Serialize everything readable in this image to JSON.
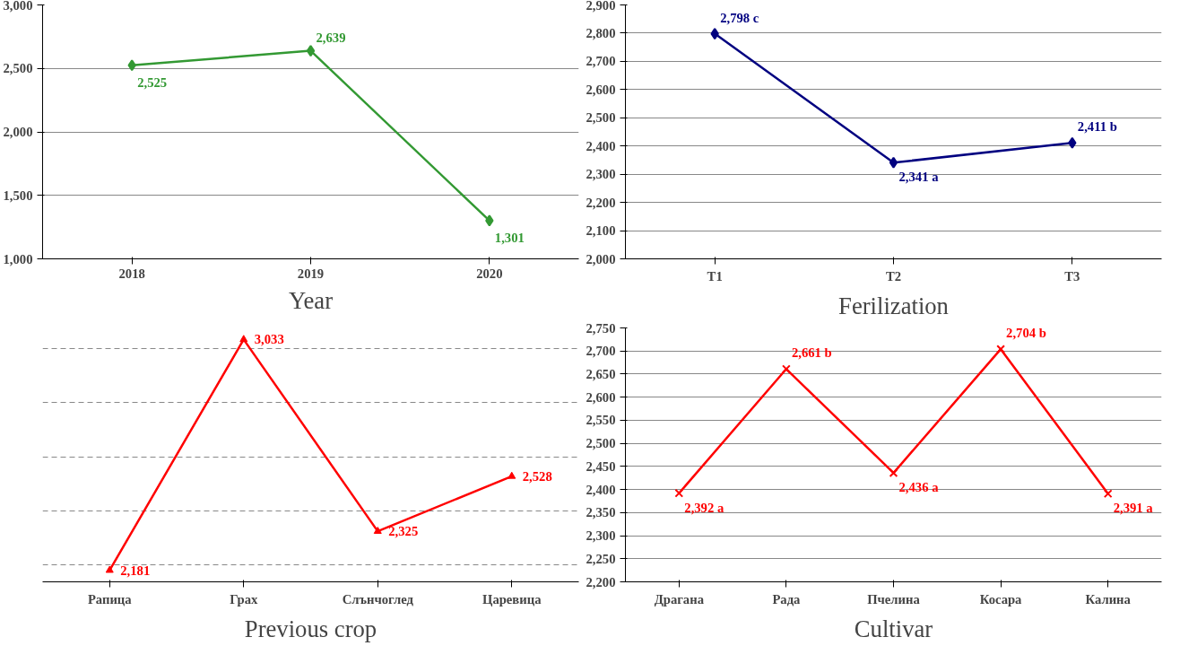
{
  "chart_data": [
    {
      "type": "line",
      "title": "Year",
      "categories": [
        "2018",
        "2019",
        "2020"
      ],
      "series": [
        {
          "color": "#339933",
          "values": [
            2525,
            2639,
            1301
          ],
          "value_labels": [
            "2,525",
            "2,639",
            "1,301"
          ]
        }
      ],
      "ylim": [
        1000,
        3000
      ],
      "yticks": [
        {
          "value": 1000,
          "label": "1,000"
        },
        {
          "value": 1500,
          "label": "1,500"
        },
        {
          "value": 2000,
          "label": "2,000"
        },
        {
          "value": 2500,
          "label": "2,500"
        },
        {
          "value": 3000,
          "label": "3,000"
        }
      ],
      "grid": "y",
      "marker": "diamond"
    },
    {
      "type": "line",
      "title": "Ferilization",
      "categories": [
        "T1",
        "T2",
        "T3"
      ],
      "series": [
        {
          "color": "#000080",
          "values": [
            2798,
            2341,
            2411
          ],
          "value_labels": [
            "2,798 c",
            "2,341 a",
            "2,411 b"
          ]
        }
      ],
      "ylim": [
        2000,
        2900
      ],
      "yticks": [
        {
          "value": 2000,
          "label": "2,000"
        },
        {
          "value": 2100,
          "label": "2,100"
        },
        {
          "value": 2200,
          "label": "2,200"
        },
        {
          "value": 2300,
          "label": "2,300"
        },
        {
          "value": 2400,
          "label": "2,400"
        },
        {
          "value": 2500,
          "label": "2,500"
        },
        {
          "value": 2600,
          "label": "2,600"
        },
        {
          "value": 2700,
          "label": "2,700"
        },
        {
          "value": 2800,
          "label": "2,800"
        },
        {
          "value": 2900,
          "label": "2,900"
        }
      ],
      "grid": "y",
      "marker": "diamond"
    },
    {
      "type": "line",
      "title": "Previous crop",
      "categories": [
        "Рапица",
        "Грах",
        "Слънчоглед",
        "Царевица"
      ],
      "series": [
        {
          "color": "#ff0000",
          "values": [
            2181,
            3033,
            2325,
            2528
          ],
          "value_labels": [
            "2,181",
            "3,033",
            "2,325",
            "2,528"
          ]
        }
      ],
      "tick_labels": "x",
      "grid": "y",
      "marker": "triangle"
    },
    {
      "type": "line",
      "title": "Cultivar",
      "categories": [
        "Драгана",
        "Рада",
        "Пчелина",
        "Косара",
        "Калина"
      ],
      "series": [
        {
          "color": "#ff0000",
          "values": [
            2392,
            2661,
            2436,
            2704,
            2391
          ],
          "value_labels": [
            "2,392 a",
            "2,661 b",
            "2,436 a",
            "2,704 b",
            "2,391 a"
          ]
        }
      ],
      "ylim": [
        2200,
        2750
      ],
      "yticks": [
        {
          "value": 2200,
          "label": "2,200"
        },
        {
          "value": 2250,
          "label": "2,250"
        },
        {
          "value": 2300,
          "label": "2,300"
        },
        {
          "value": 2350,
          "label": "2,350"
        },
        {
          "value": 2400,
          "label": "2,400"
        },
        {
          "value": 2450,
          "label": "2,450"
        },
        {
          "value": 2500,
          "label": "2,500"
        },
        {
          "value": 2550,
          "label": "2,550"
        },
        {
          "value": 2600,
          "label": "2,600"
        },
        {
          "value": 2650,
          "label": "2,650"
        },
        {
          "value": 2700,
          "label": "2,700"
        },
        {
          "value": 2750,
          "label": "2,750"
        }
      ],
      "grid": "y",
      "marker": "cross"
    }
  ]
}
